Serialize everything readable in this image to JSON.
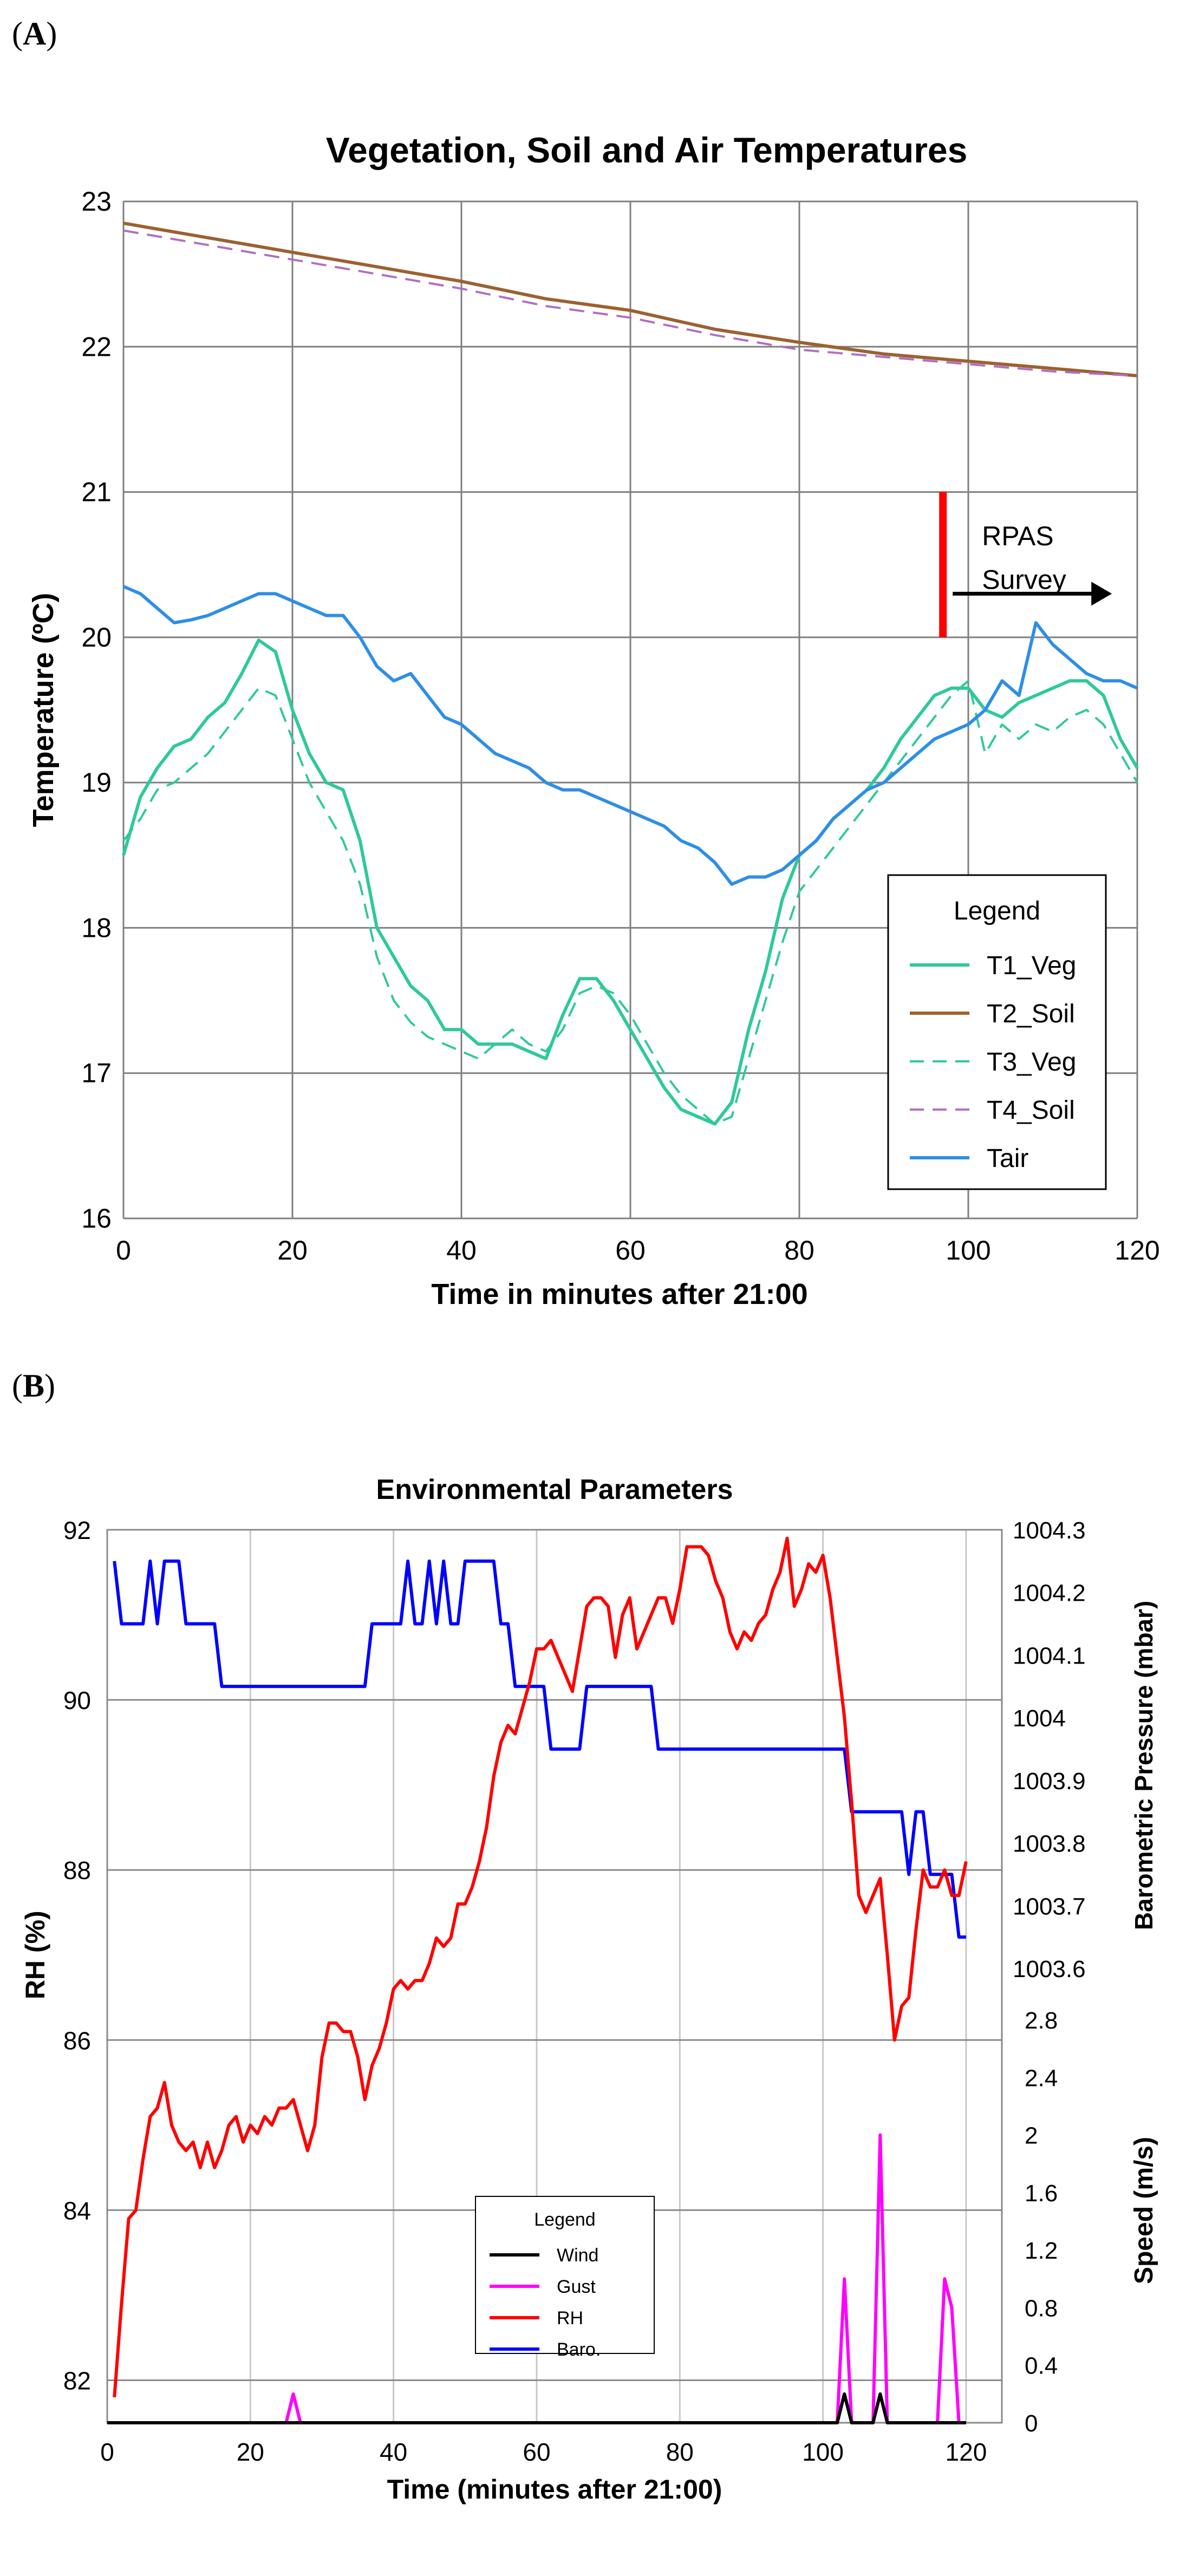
{
  "panels": {
    "a_label": "A",
    "b_label": "B"
  },
  "chart_data": [
    {
      "type": "line",
      "title": "Vegetation, Soil and Air Temperatures",
      "xlabel": "Time in minutes after 21:00",
      "ylabel": "Temperature (ºC)",
      "xlim": [
        0,
        120
      ],
      "ylim": [
        16,
        23
      ],
      "x_ticks": [
        0,
        20,
        40,
        60,
        80,
        100,
        120
      ],
      "y_ticks": [
        16,
        17,
        18,
        19,
        20,
        21,
        22,
        23
      ],
      "grid": true,
      "legend_position": "bottom-right",
      "legend_title": "Legend",
      "annotation": {
        "text_line1": "RPAS",
        "text_line2": "Survey",
        "x": 97,
        "y_from": 20,
        "y_to": 21,
        "arrow_to_x": 117,
        "arrow_y": 20.3
      },
      "series": [
        {
          "name": "T1_Veg",
          "color": "#2ec99a",
          "dash": "solid",
          "x": [
            0,
            2,
            4,
            6,
            8,
            10,
            12,
            14,
            16,
            18,
            20,
            22,
            24,
            26,
            28,
            30,
            32,
            34,
            36,
            38,
            40,
            42,
            44,
            46,
            48,
            50,
            52,
            54,
            56,
            58,
            60,
            62,
            64,
            66,
            68,
            70,
            72,
            74,
            76,
            78,
            80,
            82,
            84,
            86,
            88,
            90,
            92,
            94,
            96,
            98,
            100,
            102,
            104,
            106,
            108,
            110,
            112,
            114,
            116,
            118,
            120
          ],
          "values": [
            18.5,
            18.9,
            19.1,
            19.25,
            19.3,
            19.45,
            19.55,
            19.75,
            19.98,
            19.9,
            19.5,
            19.2,
            19.0,
            18.95,
            18.6,
            18.0,
            17.8,
            17.6,
            17.5,
            17.3,
            17.3,
            17.2,
            17.2,
            17.2,
            17.15,
            17.1,
            17.4,
            17.65,
            17.65,
            17.5,
            17.3,
            17.1,
            16.9,
            16.75,
            16.7,
            16.65,
            16.8,
            17.3,
            17.7,
            18.2,
            18.5,
            18.6,
            18.75,
            18.85,
            18.95,
            19.1,
            19.3,
            19.45,
            19.6,
            19.65,
            19.65,
            19.5,
            19.45,
            19.55,
            19.6,
            19.65,
            19.7,
            19.7,
            19.6,
            19.3,
            19.1
          ]
        },
        {
          "name": "T2_Soil",
          "color": "#9c6130",
          "dash": "solid",
          "x": [
            0,
            10,
            20,
            30,
            40,
            50,
            60,
            70,
            80,
            90,
            100,
            110,
            120
          ],
          "values": [
            22.85,
            22.75,
            22.65,
            22.55,
            22.45,
            22.33,
            22.25,
            22.12,
            22.03,
            21.95,
            21.9,
            21.85,
            21.8
          ]
        },
        {
          "name": "T3_Veg",
          "color": "#2ec99a",
          "dash": "dashed",
          "x": [
            0,
            2,
            4,
            6,
            8,
            10,
            12,
            14,
            16,
            18,
            20,
            22,
            24,
            26,
            28,
            30,
            32,
            34,
            36,
            38,
            40,
            42,
            44,
            46,
            48,
            50,
            52,
            54,
            56,
            58,
            60,
            62,
            64,
            66,
            68,
            70,
            72,
            74,
            76,
            78,
            80,
            82,
            84,
            86,
            88,
            90,
            92,
            94,
            96,
            98,
            100,
            102,
            104,
            106,
            108,
            110,
            112,
            114,
            116,
            118,
            120
          ],
          "values": [
            18.6,
            18.75,
            18.95,
            19.0,
            19.1,
            19.2,
            19.35,
            19.5,
            19.65,
            19.6,
            19.3,
            19.0,
            18.8,
            18.6,
            18.3,
            17.8,
            17.5,
            17.35,
            17.25,
            17.2,
            17.15,
            17.1,
            17.2,
            17.3,
            17.2,
            17.15,
            17.3,
            17.55,
            17.6,
            17.55,
            17.4,
            17.2,
            17.0,
            16.85,
            16.75,
            16.65,
            16.7,
            17.1,
            17.5,
            17.9,
            18.25,
            18.4,
            18.55,
            18.7,
            18.85,
            19.0,
            19.15,
            19.3,
            19.45,
            19.6,
            19.7,
            19.2,
            19.4,
            19.3,
            19.4,
            19.35,
            19.45,
            19.5,
            19.4,
            19.2,
            19.0
          ]
        },
        {
          "name": "T4_Soil",
          "color": "#b06fc3",
          "dash": "dashed",
          "x": [
            0,
            10,
            20,
            30,
            40,
            50,
            60,
            70,
            80,
            90,
            100,
            110,
            120
          ],
          "values": [
            22.8,
            22.7,
            22.6,
            22.5,
            22.4,
            22.28,
            22.2,
            22.08,
            21.98,
            21.93,
            21.88,
            21.83,
            21.8
          ]
        },
        {
          "name": "Tair",
          "color": "#2e8ee6",
          "dash": "solid",
          "x": [
            0,
            2,
            4,
            6,
            8,
            10,
            12,
            14,
            16,
            18,
            20,
            22,
            24,
            26,
            28,
            30,
            32,
            34,
            36,
            38,
            40,
            42,
            44,
            46,
            48,
            50,
            52,
            54,
            56,
            58,
            60,
            62,
            64,
            66,
            68,
            70,
            72,
            74,
            76,
            78,
            80,
            82,
            84,
            86,
            88,
            90,
            92,
            94,
            96,
            98,
            100,
            102,
            104,
            106,
            108,
            110,
            112,
            114,
            116,
            118,
            120
          ],
          "values": [
            20.35,
            20.3,
            20.2,
            20.1,
            20.12,
            20.15,
            20.2,
            20.25,
            20.3,
            20.3,
            20.25,
            20.2,
            20.15,
            20.15,
            20.0,
            19.8,
            19.7,
            19.75,
            19.6,
            19.45,
            19.4,
            19.3,
            19.2,
            19.15,
            19.1,
            19.0,
            18.95,
            18.95,
            18.9,
            18.85,
            18.8,
            18.75,
            18.7,
            18.6,
            18.55,
            18.45,
            18.3,
            18.35,
            18.35,
            18.4,
            18.5,
            18.6,
            18.75,
            18.85,
            18.95,
            19.0,
            19.1,
            19.2,
            19.3,
            19.35,
            19.4,
            19.5,
            19.7,
            19.6,
            20.1,
            19.95,
            19.85,
            19.75,
            19.7,
            19.7,
            19.65
          ]
        }
      ]
    },
    {
      "type": "line",
      "title": "Environmental Parameters",
      "xlabel": "Time (minutes after 21:00)",
      "ylabel_left": "RH (%)",
      "ylabel_right_top": "Barometric Pressure (mbar)",
      "ylabel_right_bottom": "Speed (m/s)",
      "xlim": [
        0,
        125
      ],
      "ylim_left": [
        81.5,
        92
      ],
      "x_ticks": [
        0,
        20,
        40,
        60,
        80,
        100,
        120
      ],
      "y_ticks_left": [
        82,
        84,
        86,
        88,
        90,
        92
      ],
      "baro_range": [
        1003.6,
        1004.3
      ],
      "baro_ticks": [
        "1003.6",
        "1003.7",
        "1003.8",
        "1003.9",
        "1004",
        "1004.1",
        "1004.2",
        "1004.3"
      ],
      "speed_range": [
        0,
        2.8
      ],
      "speed_ticks": [
        "0",
        "0.4",
        "0.8",
        "1.2",
        "1.6",
        "2",
        "2.4",
        "2.8"
      ],
      "grid": true,
      "legend_position": "bottom-center",
      "legend_title": "Legend",
      "series": [
        {
          "name": "Wind",
          "color": "#000000",
          "axis": "speed",
          "x": [
            0,
            102,
            103,
            104,
            107,
            108,
            109,
            120
          ],
          "values": [
            0,
            0,
            0.2,
            0,
            0,
            0.2,
            0,
            0
          ]
        },
        {
          "name": "Gust",
          "color": "#ff00ff",
          "axis": "speed",
          "x": [
            0,
            25,
            26,
            27,
            102,
            103,
            104,
            107,
            108,
            109,
            116,
            117,
            118,
            119,
            120
          ],
          "values": [
            0,
            0,
            0.2,
            0,
            0,
            1.0,
            0,
            0,
            2.0,
            0,
            0,
            1.0,
            0.8,
            0,
            0
          ]
        },
        {
          "name": "RH",
          "color": "#ff0000",
          "axis": "rh",
          "x": [
            1,
            2,
            3,
            4,
            5,
            6,
            7,
            8,
            9,
            10,
            11,
            12,
            13,
            14,
            15,
            16,
            17,
            18,
            19,
            20,
            21,
            22,
            23,
            24,
            25,
            26,
            27,
            28,
            29,
            30,
            31,
            32,
            33,
            34,
            35,
            36,
            37,
            38,
            39,
            40,
            41,
            42,
            43,
            44,
            45,
            46,
            47,
            48,
            49,
            50,
            51,
            52,
            53,
            54,
            55,
            56,
            57,
            58,
            59,
            60,
            61,
            62,
            63,
            64,
            65,
            66,
            67,
            68,
            69,
            70,
            71,
            72,
            73,
            74,
            75,
            76,
            77,
            78,
            79,
            80,
            81,
            82,
            83,
            84,
            85,
            86,
            87,
            88,
            89,
            90,
            91,
            92,
            93,
            94,
            95,
            96,
            97,
            98,
            99,
            100,
            101,
            102,
            103,
            104,
            105,
            106,
            107,
            108,
            109,
            110,
            111,
            112,
            113,
            114,
            115,
            116,
            117,
            118,
            119,
            120
          ],
          "values": [
            81.8,
            82.9,
            83.9,
            84.0,
            84.6,
            85.1,
            85.2,
            85.5,
            85.0,
            84.8,
            84.7,
            84.8,
            84.5,
            84.8,
            84.5,
            84.7,
            85.0,
            85.1,
            84.8,
            85.0,
            84.9,
            85.1,
            85.0,
            85.2,
            85.2,
            85.3,
            85.0,
            84.7,
            85.0,
            85.8,
            86.2,
            86.2,
            86.1,
            86.1,
            85.8,
            85.3,
            85.7,
            85.9,
            86.2,
            86.6,
            86.7,
            86.6,
            86.7,
            86.7,
            86.9,
            87.2,
            87.1,
            87.2,
            87.6,
            87.6,
            87.8,
            88.1,
            88.5,
            89.1,
            89.5,
            89.7,
            89.6,
            89.9,
            90.2,
            90.6,
            90.6,
            90.7,
            90.5,
            90.3,
            90.1,
            90.6,
            91.1,
            91.2,
            91.2,
            91.1,
            90.5,
            91.0,
            91.2,
            90.6,
            90.8,
            91.0,
            91.2,
            91.2,
            90.9,
            91.3,
            91.8,
            91.8,
            91.8,
            91.7,
            91.4,
            91.2,
            90.8,
            90.6,
            90.8,
            90.7,
            90.9,
            91.0,
            91.3,
            91.5,
            91.9,
            91.1,
            91.3,
            91.6,
            91.5,
            91.7,
            91.2,
            90.5,
            89.8,
            88.8,
            87.7,
            87.5,
            87.7,
            87.9,
            87.0,
            86.0,
            86.4,
            86.5,
            87.3,
            88.0,
            87.8,
            87.8,
            88.0,
            87.7,
            87.7,
            88.1
          ]
        },
        {
          "name": "Baro.",
          "color": "#0000ff",
          "axis": "baro",
          "x": [
            1,
            2,
            3,
            4,
            5,
            6,
            7,
            8,
            9,
            10,
            11,
            12,
            13,
            14,
            15,
            16,
            36,
            37,
            38,
            39,
            40,
            41,
            42,
            43,
            44,
            45,
            46,
            47,
            48,
            49,
            50,
            51,
            52,
            53,
            54,
            55,
            56,
            57,
            58,
            59,
            60,
            61,
            62,
            63,
            64,
            65,
            66,
            67,
            68,
            69,
            70,
            71,
            72,
            73,
            74,
            75,
            76,
            77,
            78,
            103,
            104,
            105,
            106,
            107,
            108,
            109,
            110,
            111,
            112,
            113,
            114,
            115,
            116,
            117,
            118,
            119,
            120
          ],
          "values": [
            1004.25,
            1004.15,
            1004.15,
            1004.15,
            1004.15,
            1004.25,
            1004.15,
            1004.25,
            1004.25,
            1004.25,
            1004.15,
            1004.15,
            1004.15,
            1004.15,
            1004.15,
            1004.05,
            1004.05,
            1004.15,
            1004.15,
            1004.15,
            1004.15,
            1004.15,
            1004.25,
            1004.15,
            1004.15,
            1004.25,
            1004.15,
            1004.25,
            1004.15,
            1004.15,
            1004.25,
            1004.25,
            1004.25,
            1004.25,
            1004.25,
            1004.15,
            1004.15,
            1004.05,
            1004.05,
            1004.05,
            1004.05,
            1004.05,
            1003.95,
            1003.95,
            1003.95,
            1003.95,
            1003.95,
            1004.05,
            1004.05,
            1004.05,
            1004.05,
            1004.05,
            1004.05,
            1004.05,
            1004.05,
            1004.05,
            1004.05,
            1003.95,
            1003.95,
            1003.95,
            1003.85,
            1003.85,
            1003.85,
            1003.85,
            1003.85,
            1003.85,
            1003.85,
            1003.85,
            1003.75,
            1003.85,
            1003.85,
            1003.75,
            1003.75,
            1003.75,
            1003.75,
            1003.65,
            1003.65
          ]
        }
      ]
    }
  ]
}
